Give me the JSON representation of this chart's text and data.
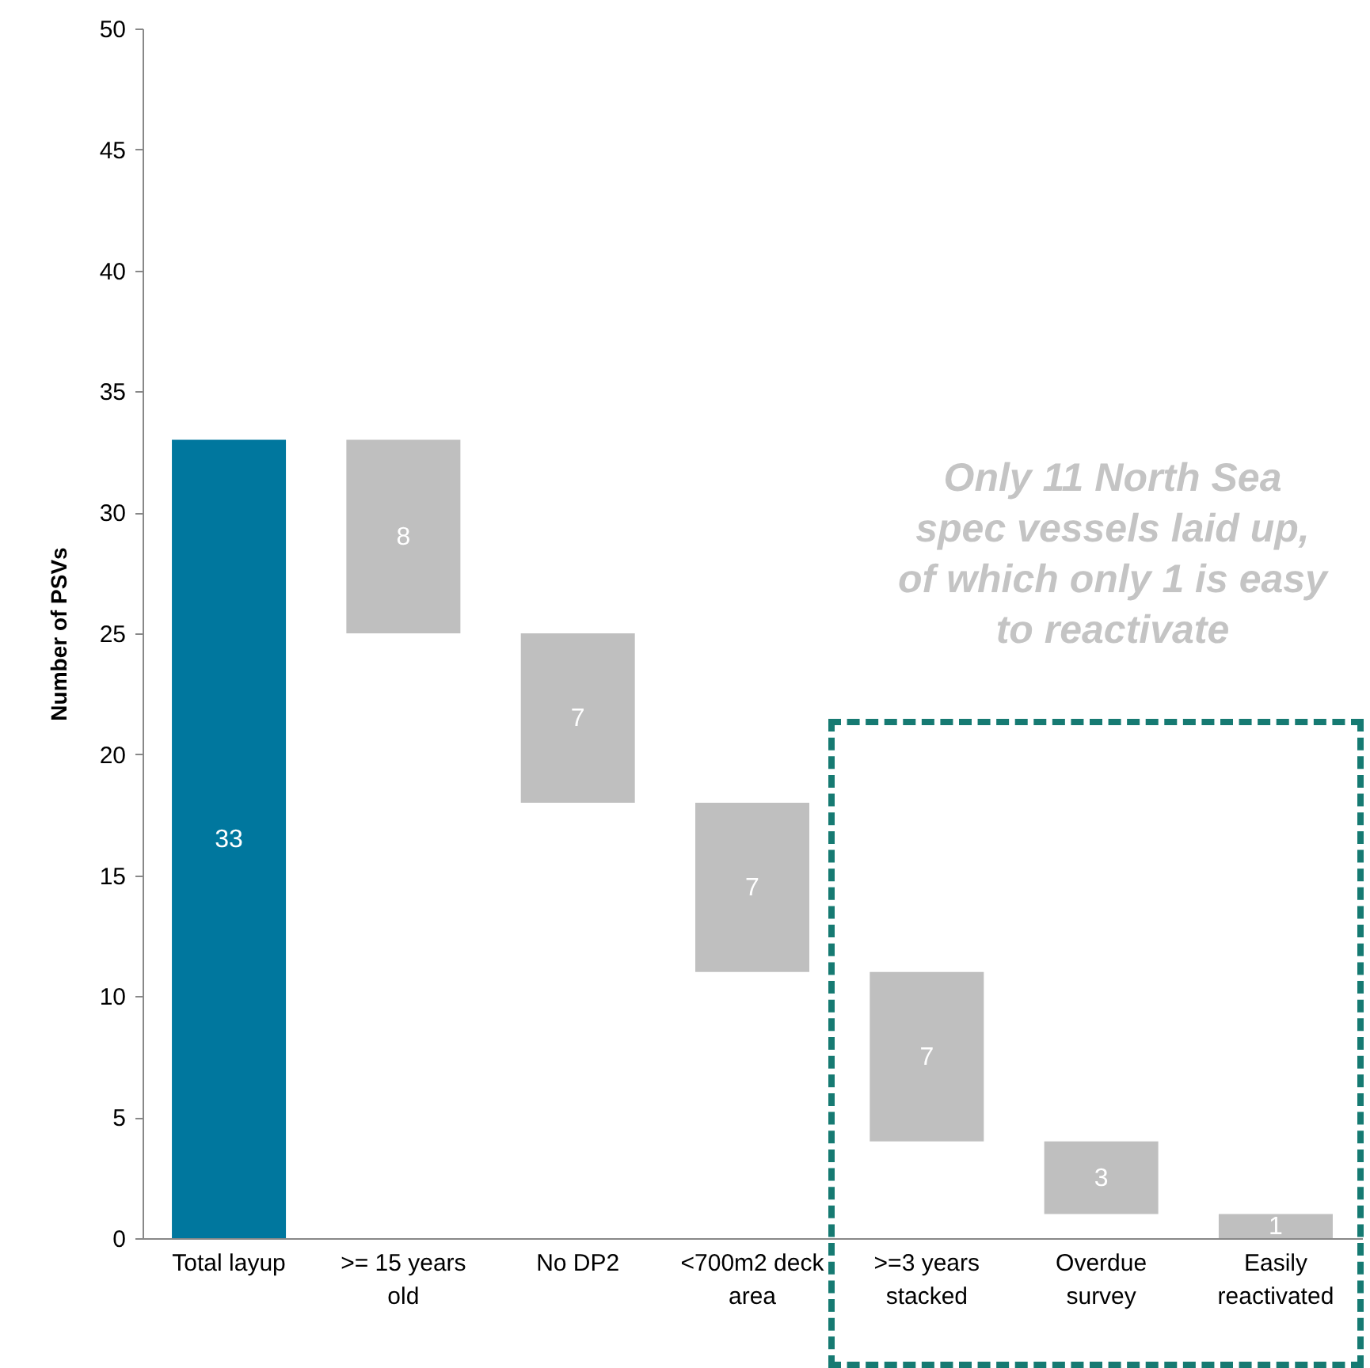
{
  "chart_data": {
    "type": "bar",
    "ylabel": "Number of PSVs",
    "categories": [
      "Total layup",
      ">= 15 years old",
      "No DP2",
      "<700m2 deck area",
      ">=3 years stacked",
      "Overdue survey",
      "Easily reactivated"
    ],
    "values": [
      33,
      8,
      7,
      7,
      7,
      3,
      1
    ],
    "base": [
      0,
      25,
      18,
      11,
      4,
      1,
      0
    ],
    "colors": [
      "#00779e",
      "#bfbfbf",
      "#bfbfbf",
      "#bfbfbf",
      "#bfbfbf",
      "#bfbfbf",
      "#bfbfbf"
    ],
    "ylim": [
      0,
      50
    ],
    "yticks": [
      0,
      5,
      10,
      15,
      20,
      25,
      30,
      35,
      40,
      45,
      50
    ],
    "grid": false,
    "data_labels": true,
    "annotations": [
      "Only 11 North Sea spec vessels laid up, of which only 1 is easy to reactivate"
    ]
  }
}
